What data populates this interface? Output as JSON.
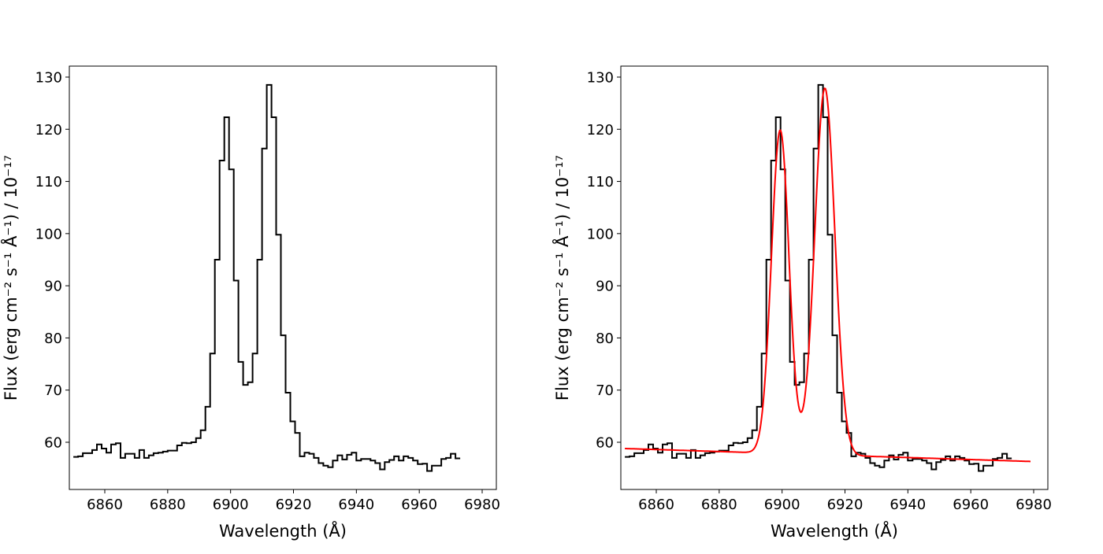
{
  "chart_data": [
    {
      "type": "line",
      "title": "",
      "xlabel": "Wavelength (Å)",
      "ylabel": "Flux (erg cm⁻² s⁻¹ Å⁻¹) / 10⁻¹⁷",
      "xlim": [
        6845,
        6981
      ],
      "ylim": [
        50.7,
        132.2
      ],
      "xticks": [
        6860,
        6880,
        6900,
        6920,
        6940,
        6960,
        6980
      ],
      "yticks": [
        60,
        70,
        80,
        90,
        100,
        110,
        120,
        130
      ],
      "grid": false,
      "series": [
        {
          "name": "spectrum",
          "style": "steps",
          "color": "#000000",
          "bin_start": 6850,
          "bin_width": 1.5,
          "values": [
            57.2,
            57.3,
            57.9,
            57.9,
            58.5,
            59.6,
            58.8,
            58.0,
            59.6,
            59.8,
            57.0,
            57.8,
            57.8,
            57.0,
            58.5,
            57.0,
            57.5,
            57.9,
            58.0,
            58.2,
            58.4,
            58.4,
            59.4,
            59.9,
            59.8,
            60.0,
            60.8,
            62.3,
            66.8,
            77.0,
            95.0,
            114.0,
            122.3,
            112.3,
            91.0,
            75.4,
            71.0,
            71.5,
            77.0,
            95.0,
            116.3,
            128.5,
            122.3,
            99.8,
            80.5,
            69.5,
            64.0,
            61.8,
            57.3,
            58.0,
            57.8,
            57.0,
            56.0,
            55.5,
            55.2,
            56.5,
            57.5,
            56.7,
            57.6,
            58.0,
            56.5,
            56.8,
            56.8,
            56.5,
            56.0,
            54.8,
            56.2,
            56.6,
            57.3,
            56.5,
            57.3,
            57.0,
            56.5,
            55.8,
            55.9,
            54.5,
            55.5,
            55.5,
            56.8,
            57.0,
            57.8,
            56.9
          ]
        }
      ]
    },
    {
      "type": "line",
      "title": "",
      "xlabel": "Wavelength (Å)",
      "ylabel": "Flux (erg cm⁻² s⁻¹ Å⁻¹) / 10⁻¹⁷",
      "xlim": [
        6845,
        6981
      ],
      "ylim": [
        50.7,
        132.2
      ],
      "xticks": [
        6860,
        6880,
        6900,
        6920,
        6940,
        6960,
        6980
      ],
      "yticks": [
        60,
        70,
        80,
        90,
        100,
        110,
        120,
        130
      ],
      "grid": false,
      "series": [
        {
          "name": "spectrum",
          "style": "steps",
          "color": "#000000",
          "same_as_left": true
        },
        {
          "name": "fit",
          "style": "line",
          "color": "#ff0000",
          "model": "two gaussians + linear continuum",
          "continuum": {
            "at_6850": 58.8,
            "at_6980": 56.3
          },
          "components": [
            {
              "center": 6899.4,
              "amplitude": 62.0,
              "sigma": 2.8
            },
            {
              "center": 6913.6,
              "amplitude": 70.3,
              "sigma": 3.2
            }
          ]
        }
      ]
    }
  ]
}
